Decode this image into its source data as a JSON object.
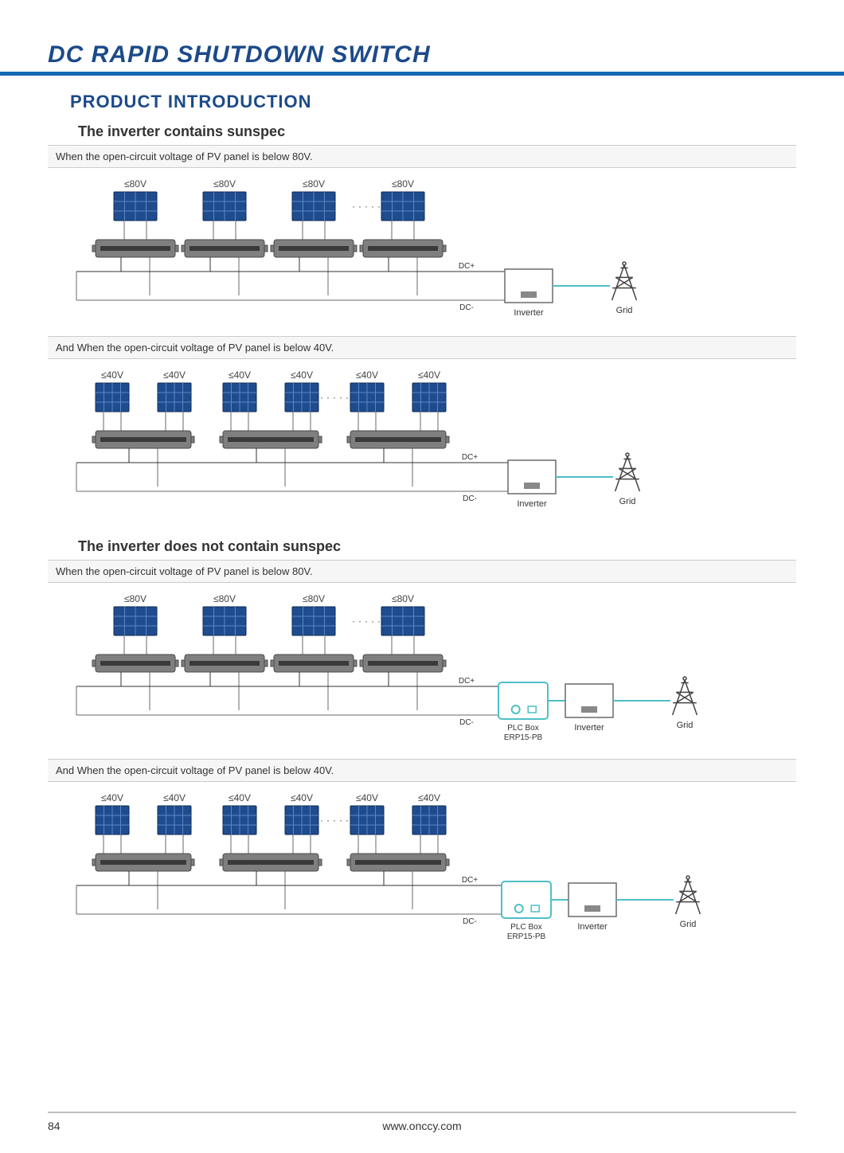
{
  "page_title": "DC RAPID SHUTDOWN SWITCH",
  "section_title": "PRODUCT INTRODUCTION",
  "group_a": {
    "heading": "The inverter contains sunspec",
    "case80": {
      "note": "When the open-circuit voltage of PV panel is below 80V.",
      "voltage_label": "≤80V",
      "panel_count": 4,
      "panels_per_module": 1,
      "dc_plus_label": "DC+",
      "dc_minus_label": "DC-",
      "inverter_label": "Inverter",
      "grid_label": "Grid",
      "plc_box": false
    },
    "case40": {
      "note": "And When the open-circuit voltage of PV panel is below 40V.",
      "voltage_label": "≤40V",
      "panel_count": 3,
      "panels_per_module": 2,
      "dc_plus_label": "DC+",
      "dc_minus_label": "DC-",
      "inverter_label": "Inverter",
      "grid_label": "Grid",
      "plc_box": false
    }
  },
  "group_b": {
    "heading": "The inverter does not contain sunspec",
    "case80": {
      "note": "When the open-circuit voltage of PV panel is below 80V.",
      "voltage_label": "≤80V",
      "panel_count": 4,
      "panels_per_module": 1,
      "dc_plus_label": "DC+",
      "dc_minus_label": "DC-",
      "inverter_label": "Inverter",
      "grid_label": "Grid",
      "plc_box": true,
      "plc_label_1": "PLC Box",
      "plc_label_2": "ERP15-PB"
    },
    "case40": {
      "note": "And When the open-circuit voltage of PV panel is below 40V.",
      "voltage_label": "≤40V",
      "panel_count": 3,
      "panels_per_module": 2,
      "dc_plus_label": "DC+",
      "dc_minus_label": "DC-",
      "inverter_label": "Inverter",
      "grid_label": "Grid",
      "plc_box": true,
      "plc_label_1": "PLC Box",
      "plc_label_2": "ERP15-PB"
    }
  },
  "colors": {
    "brand_blue": "#1368b6",
    "heading_blue": "#1c4a8a",
    "panel_fill": "#1f4c8e",
    "ac_line": "#4fbfc7",
    "wire": "#6a6a6a",
    "band_bg": "#f6f6f6"
  },
  "footer": {
    "page_number": "84",
    "url": "www.onccy.com"
  }
}
